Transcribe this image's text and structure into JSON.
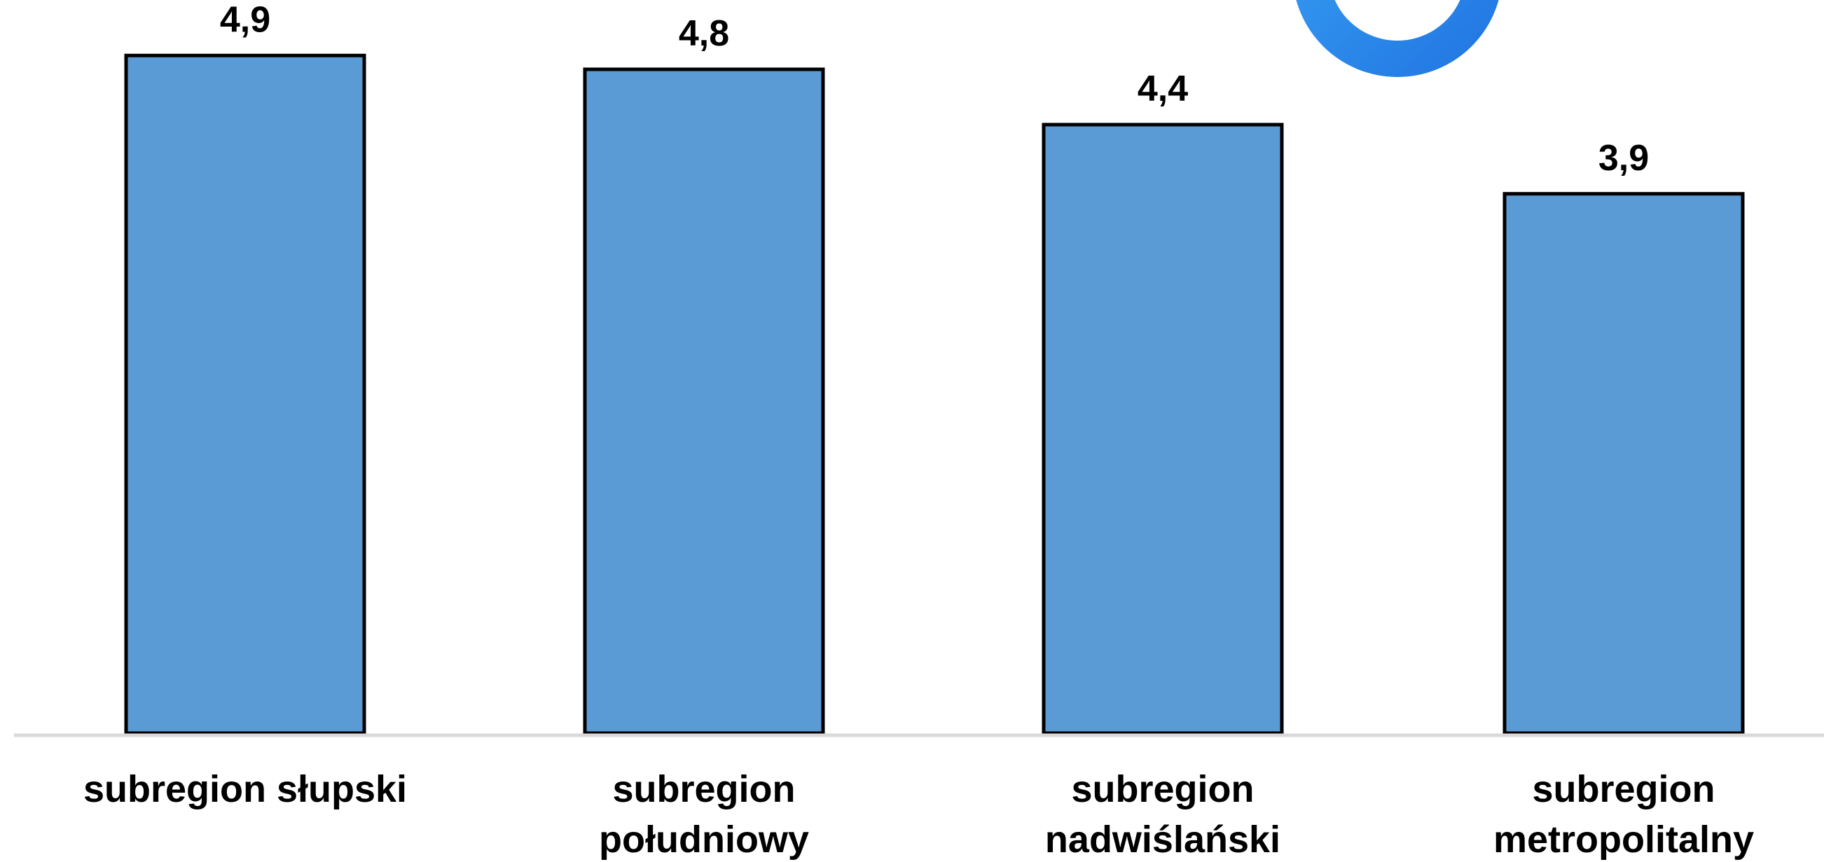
{
  "chart_data": {
    "type": "bar",
    "categories": [
      [
        "subregion słupski"
      ],
      [
        "subregion",
        "południowy"
      ],
      [
        "subregion",
        "nadwiślański"
      ],
      [
        "subregion",
        "metropolitalny"
      ]
    ],
    "values": [
      4.9,
      4.8,
      4.4,
      3.9
    ],
    "value_labels": [
      "4,9",
      "4,8",
      "4,4",
      "3,9"
    ],
    "ylim": [
      0,
      5.2
    ],
    "grid": false,
    "colors": {
      "bar": "#5B9BD5",
      "bar_border": "#000000",
      "axis": "#D9D9D9",
      "logo": "#2A8BEA"
    }
  }
}
